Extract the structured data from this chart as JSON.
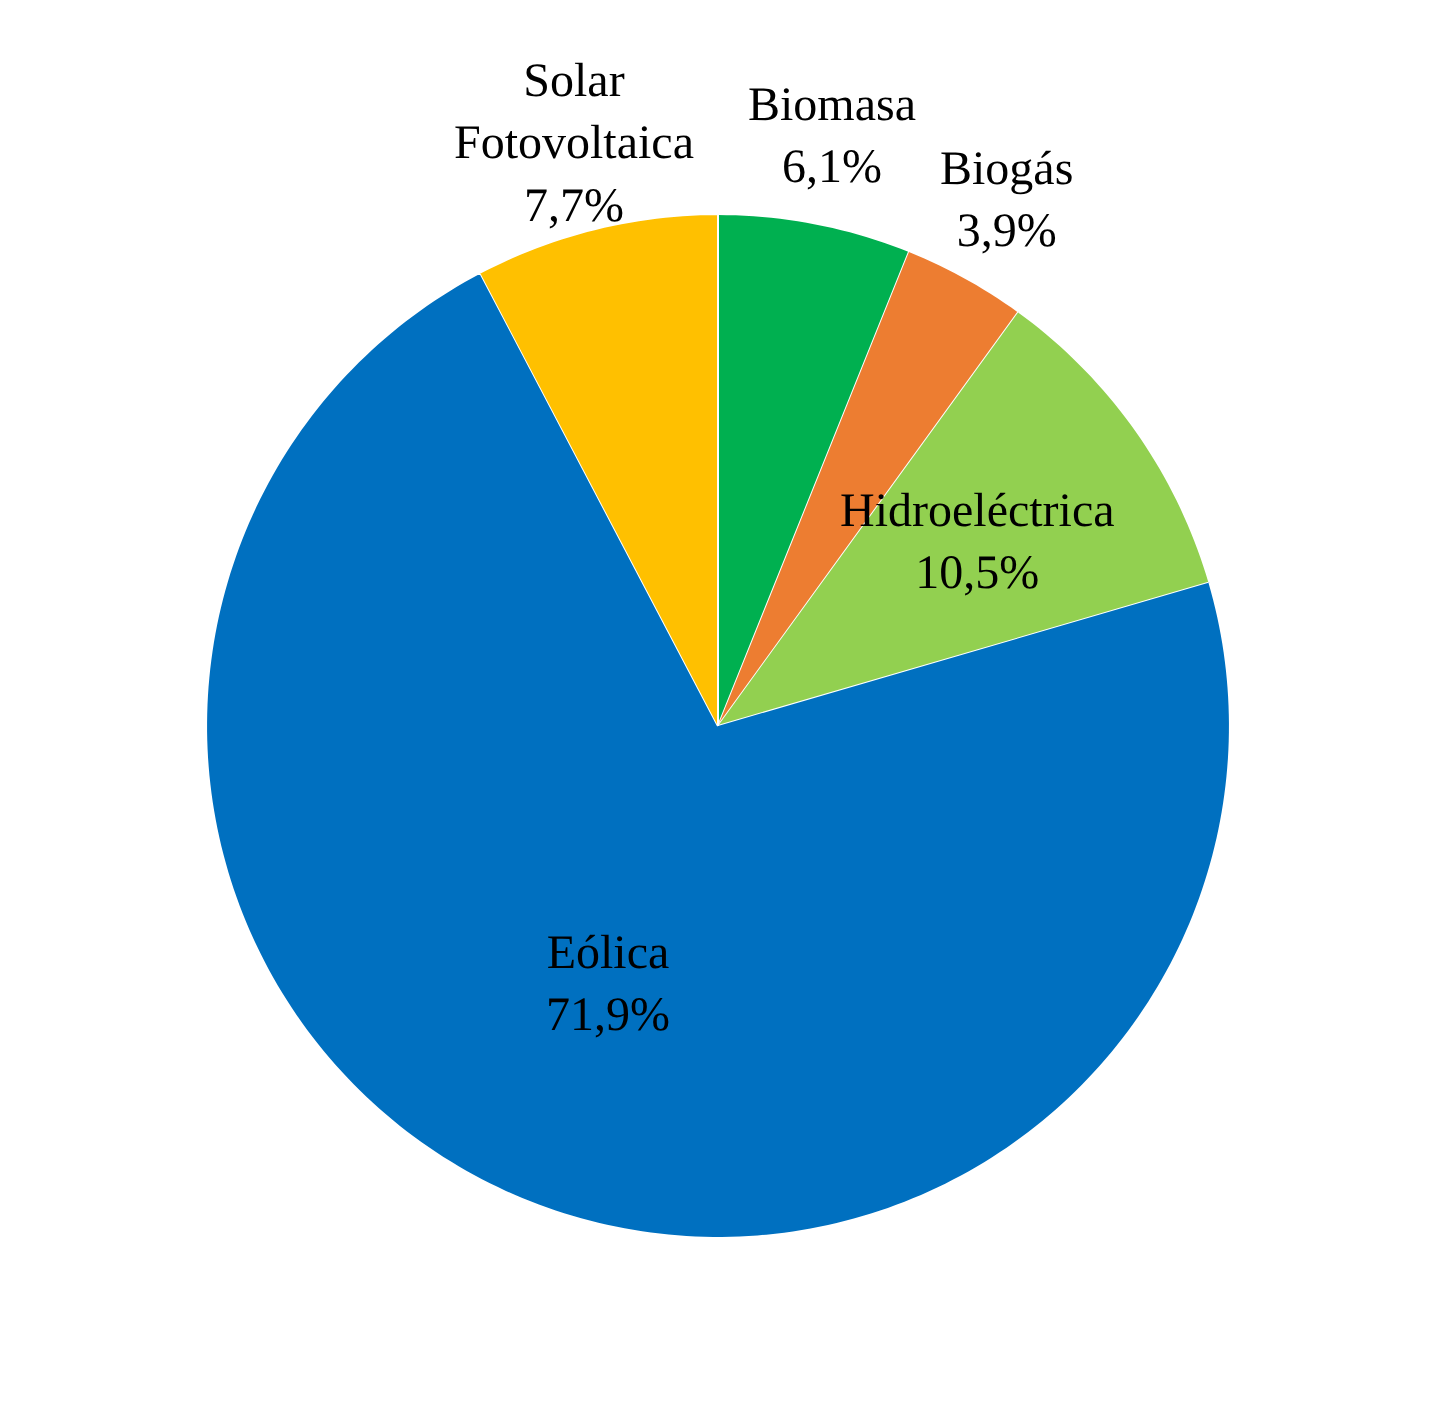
{
  "chart_data": {
    "type": "pie",
    "categories": [
      "Biomasa",
      "Biogás",
      "Hidroeléctrica",
      "Eólica",
      "Solar Fotovoltaica"
    ],
    "values": [
      6.1,
      3.9,
      10.5,
      71.9,
      7.7
    ],
    "value_labels": [
      "6,1%",
      "3,9%",
      "10,5%",
      "71,9%",
      "7,7%"
    ],
    "colors": [
      "#00b050",
      "#ed7d31",
      "#92d050",
      "#0070c0",
      "#ffc000"
    ],
    "legend": false
  }
}
